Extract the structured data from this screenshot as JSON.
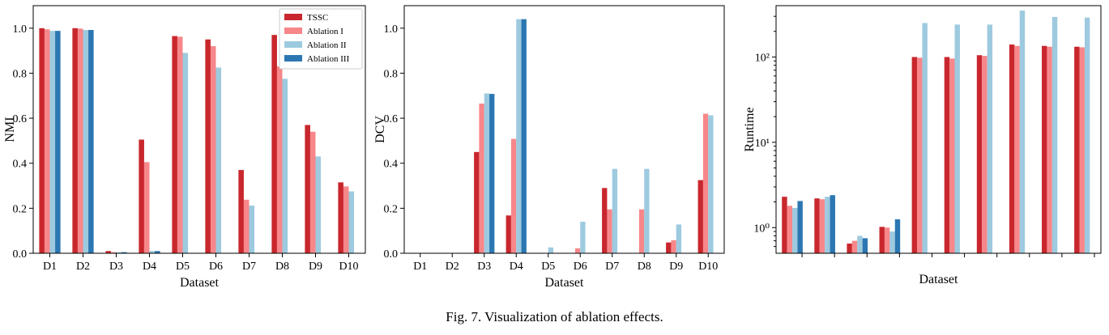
{
  "caption": "Fig. 7.  Visualization of ablation effects.",
  "colors": [
    "#c8272d",
    "#f7878a",
    "#9dcadf",
    "#2c77b2"
  ],
  "chart_data": [
    {
      "type": "bar",
      "xlabel": "Dataset",
      "ylabel": "NMI",
      "ylim": [
        0,
        1.1
      ],
      "yticks": [
        0.0,
        0.2,
        0.4,
        0.6,
        0.8,
        1.0
      ],
      "ytick_labels": [
        "0.0",
        "0.2",
        "0.4",
        "0.6",
        "0.8",
        "1.0"
      ],
      "categories": [
        "D1",
        "D2",
        "D3",
        "D4",
        "D5",
        "D6",
        "D7",
        "D8",
        "D9",
        "D10"
      ],
      "legend": "top-right",
      "series": [
        {
          "name": "TSSC",
          "values": [
            1.0,
            1.0,
            0.01,
            0.505,
            0.965,
            0.95,
            0.37,
            0.97,
            0.57,
            0.315
          ]
        },
        {
          "name": "Ablation I",
          "values": [
            0.995,
            0.998,
            0.005,
            0.405,
            0.962,
            0.92,
            0.238,
            0.83,
            0.54,
            0.297
          ]
        },
        {
          "name": "Ablation II",
          "values": [
            0.988,
            0.992,
            0.005,
            0.01,
            0.89,
            0.825,
            0.212,
            0.775,
            0.43,
            0.275
          ]
        },
        {
          "name": "Ablation III",
          "values": [
            0.988,
            0.992,
            0.005,
            0.01,
            0,
            0,
            0,
            0,
            0,
            0
          ]
        }
      ]
    },
    {
      "type": "bar",
      "xlabel": "Dataset",
      "ylabel": "DCV",
      "ylim": [
        0,
        1.1
      ],
      "yticks": [
        0.0,
        0.2,
        0.4,
        0.6,
        0.8,
        1.0
      ],
      "ytick_labels": [
        "0.0",
        "0.2",
        "0.4",
        "0.6",
        "0.8",
        "1.0"
      ],
      "categories": [
        "D1",
        "D2",
        "D3",
        "D4",
        "D5",
        "D6",
        "D7",
        "D8",
        "D9",
        "D10"
      ],
      "series": [
        {
          "name": "TSSC",
          "values": [
            0,
            0,
            0.45,
            0.168,
            0,
            0,
            0.29,
            0,
            0.048,
            0.325
          ]
        },
        {
          "name": "Ablation I",
          "values": [
            0,
            0,
            0.665,
            0.508,
            0,
            0.022,
            0.195,
            0.195,
            0.058,
            0.62
          ]
        },
        {
          "name": "Ablation II",
          "values": [
            0,
            0,
            0.71,
            1.04,
            0.026,
            0.14,
            0.375,
            0.375,
            0.128,
            0.613
          ]
        },
        {
          "name": "Ablation III",
          "values": [
            0,
            0,
            0.708,
            1.04,
            0,
            0,
            0,
            0,
            0,
            0
          ]
        }
      ]
    },
    {
      "type": "bar",
      "xlabel": "Dataset",
      "ylabel": "Runtime",
      "yscale": "log",
      "ylim": [
        0.5,
        400
      ],
      "yticks": [
        1,
        10,
        100
      ],
      "ytick_labels": [
        "10⁰",
        "10¹",
        "10²"
      ],
      "categories": [
        "",
        "",
        "",
        "",
        "",
        "",
        "",
        "",
        "",
        ""
      ],
      "series": [
        {
          "name": "TSSC",
          "values": [
            2.3,
            2.2,
            0.65,
            1.02,
            100,
            100,
            105,
            140,
            135,
            132
          ]
        },
        {
          "name": "Ablation I",
          "values": [
            1.8,
            2.15,
            0.7,
            1.0,
            98,
            96,
            103,
            135,
            132,
            130
          ]
        },
        {
          "name": "Ablation II",
          "values": [
            1.7,
            2.3,
            0.8,
            0.9,
            250,
            240,
            240,
            350,
            295,
            290
          ]
        },
        {
          "name": "Ablation III",
          "values": [
            2.05,
            2.4,
            0.75,
            1.25,
            0,
            0,
            0,
            0,
            0,
            0
          ]
        }
      ]
    }
  ]
}
